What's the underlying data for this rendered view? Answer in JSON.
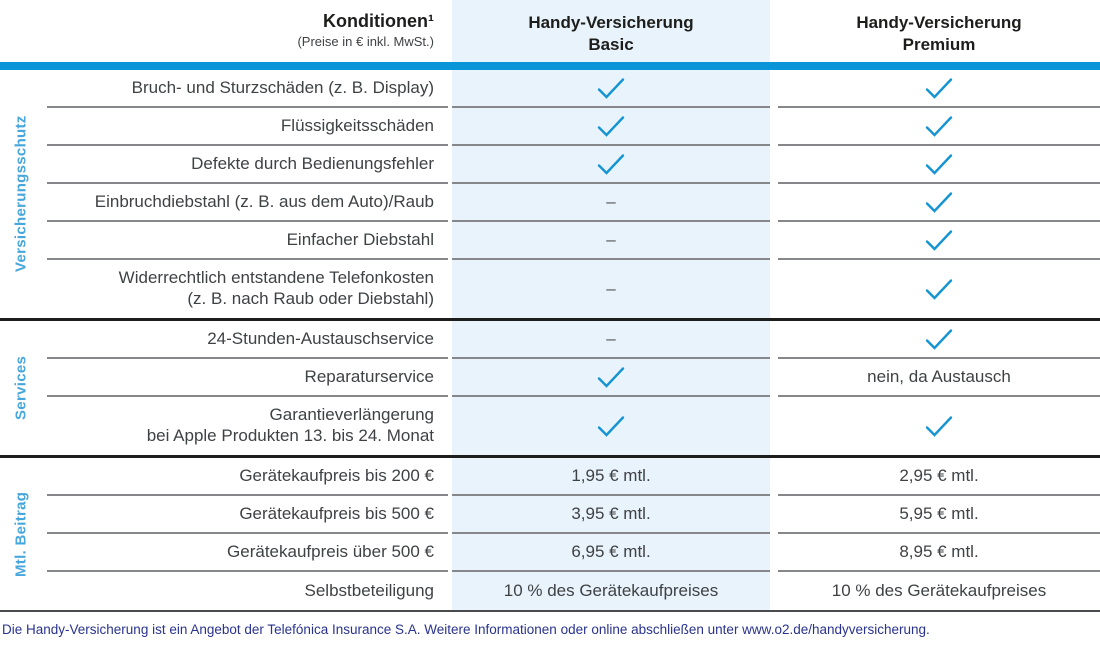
{
  "colors": {
    "brand_blue": "#0995d8",
    "basic_column_bg": "#e9f3fb",
    "section_label_blue": "#47a7dd",
    "check_blue": "#1494d2",
    "footer_navy": "#29338e"
  },
  "header": {
    "conditions_title": "Konditionen¹",
    "conditions_subtitle": "(Preise in € inkl. MwSt.)",
    "basic_line1": "Handy-Versicherung",
    "basic_line2": "Basic",
    "premium_line1": "Handy-Versicherung",
    "premium_line2": "Premium"
  },
  "dash": "–",
  "sections": [
    {
      "label": "Versicherungsschutz",
      "rows": [
        {
          "label": "Bruch- und Sturzschäden (z. B. Display)",
          "basic": "check",
          "premium": "check"
        },
        {
          "label": "Flüssigkeitsschäden",
          "basic": "check",
          "premium": "check"
        },
        {
          "label": "Defekte durch Bedienungsfehler",
          "basic": "check",
          "premium": "check"
        },
        {
          "label": "Einbruchdiebstahl (z. B. aus dem Auto)/Raub",
          "basic": "–",
          "premium": "check"
        },
        {
          "label": "Einfacher Diebstahl",
          "basic": "–",
          "premium": "check"
        },
        {
          "label": "Widerrechtlich entstandene Telefonkosten",
          "label2": "(z. B. nach Raub oder Diebstahl)",
          "basic": "–",
          "premium": "check"
        }
      ]
    },
    {
      "label": "Services",
      "rows": [
        {
          "label": "24-Stunden-Austauschservice",
          "basic": "–",
          "premium": "check"
        },
        {
          "label": "Reparaturservice",
          "basic": "check",
          "premium": "nein, da Austausch"
        },
        {
          "label": "Garantieverlängerung",
          "label2": "bei Apple Produkten 13. bis 24. Monat",
          "basic": "check",
          "premium": "check"
        }
      ]
    },
    {
      "label": "Mtl. Beitrag",
      "rows": [
        {
          "label": "Gerätekaufpreis bis 200 €",
          "basic": "1,95 € mtl.",
          "premium": "2,95 € mtl."
        },
        {
          "label": "Gerätekaufpreis bis 500 €",
          "basic": "3,95 € mtl.",
          "premium": "5,95 € mtl."
        },
        {
          "label": "Gerätekaufpreis über 500 €",
          "basic": "6,95 € mtl.",
          "premium": "8,95 € mtl."
        },
        {
          "label": "Selbstbeteiligung",
          "basic": "10 % des Gerätekaufpreises",
          "premium": "10 % des Gerätekaufpreises"
        }
      ]
    }
  ],
  "footer": {
    "note": "Die Handy-Versicherung ist ein Angebot der Telefónica Insurance S.A. Weitere Informationen oder online abschließen unter www.o2.de/handyversicherung."
  }
}
